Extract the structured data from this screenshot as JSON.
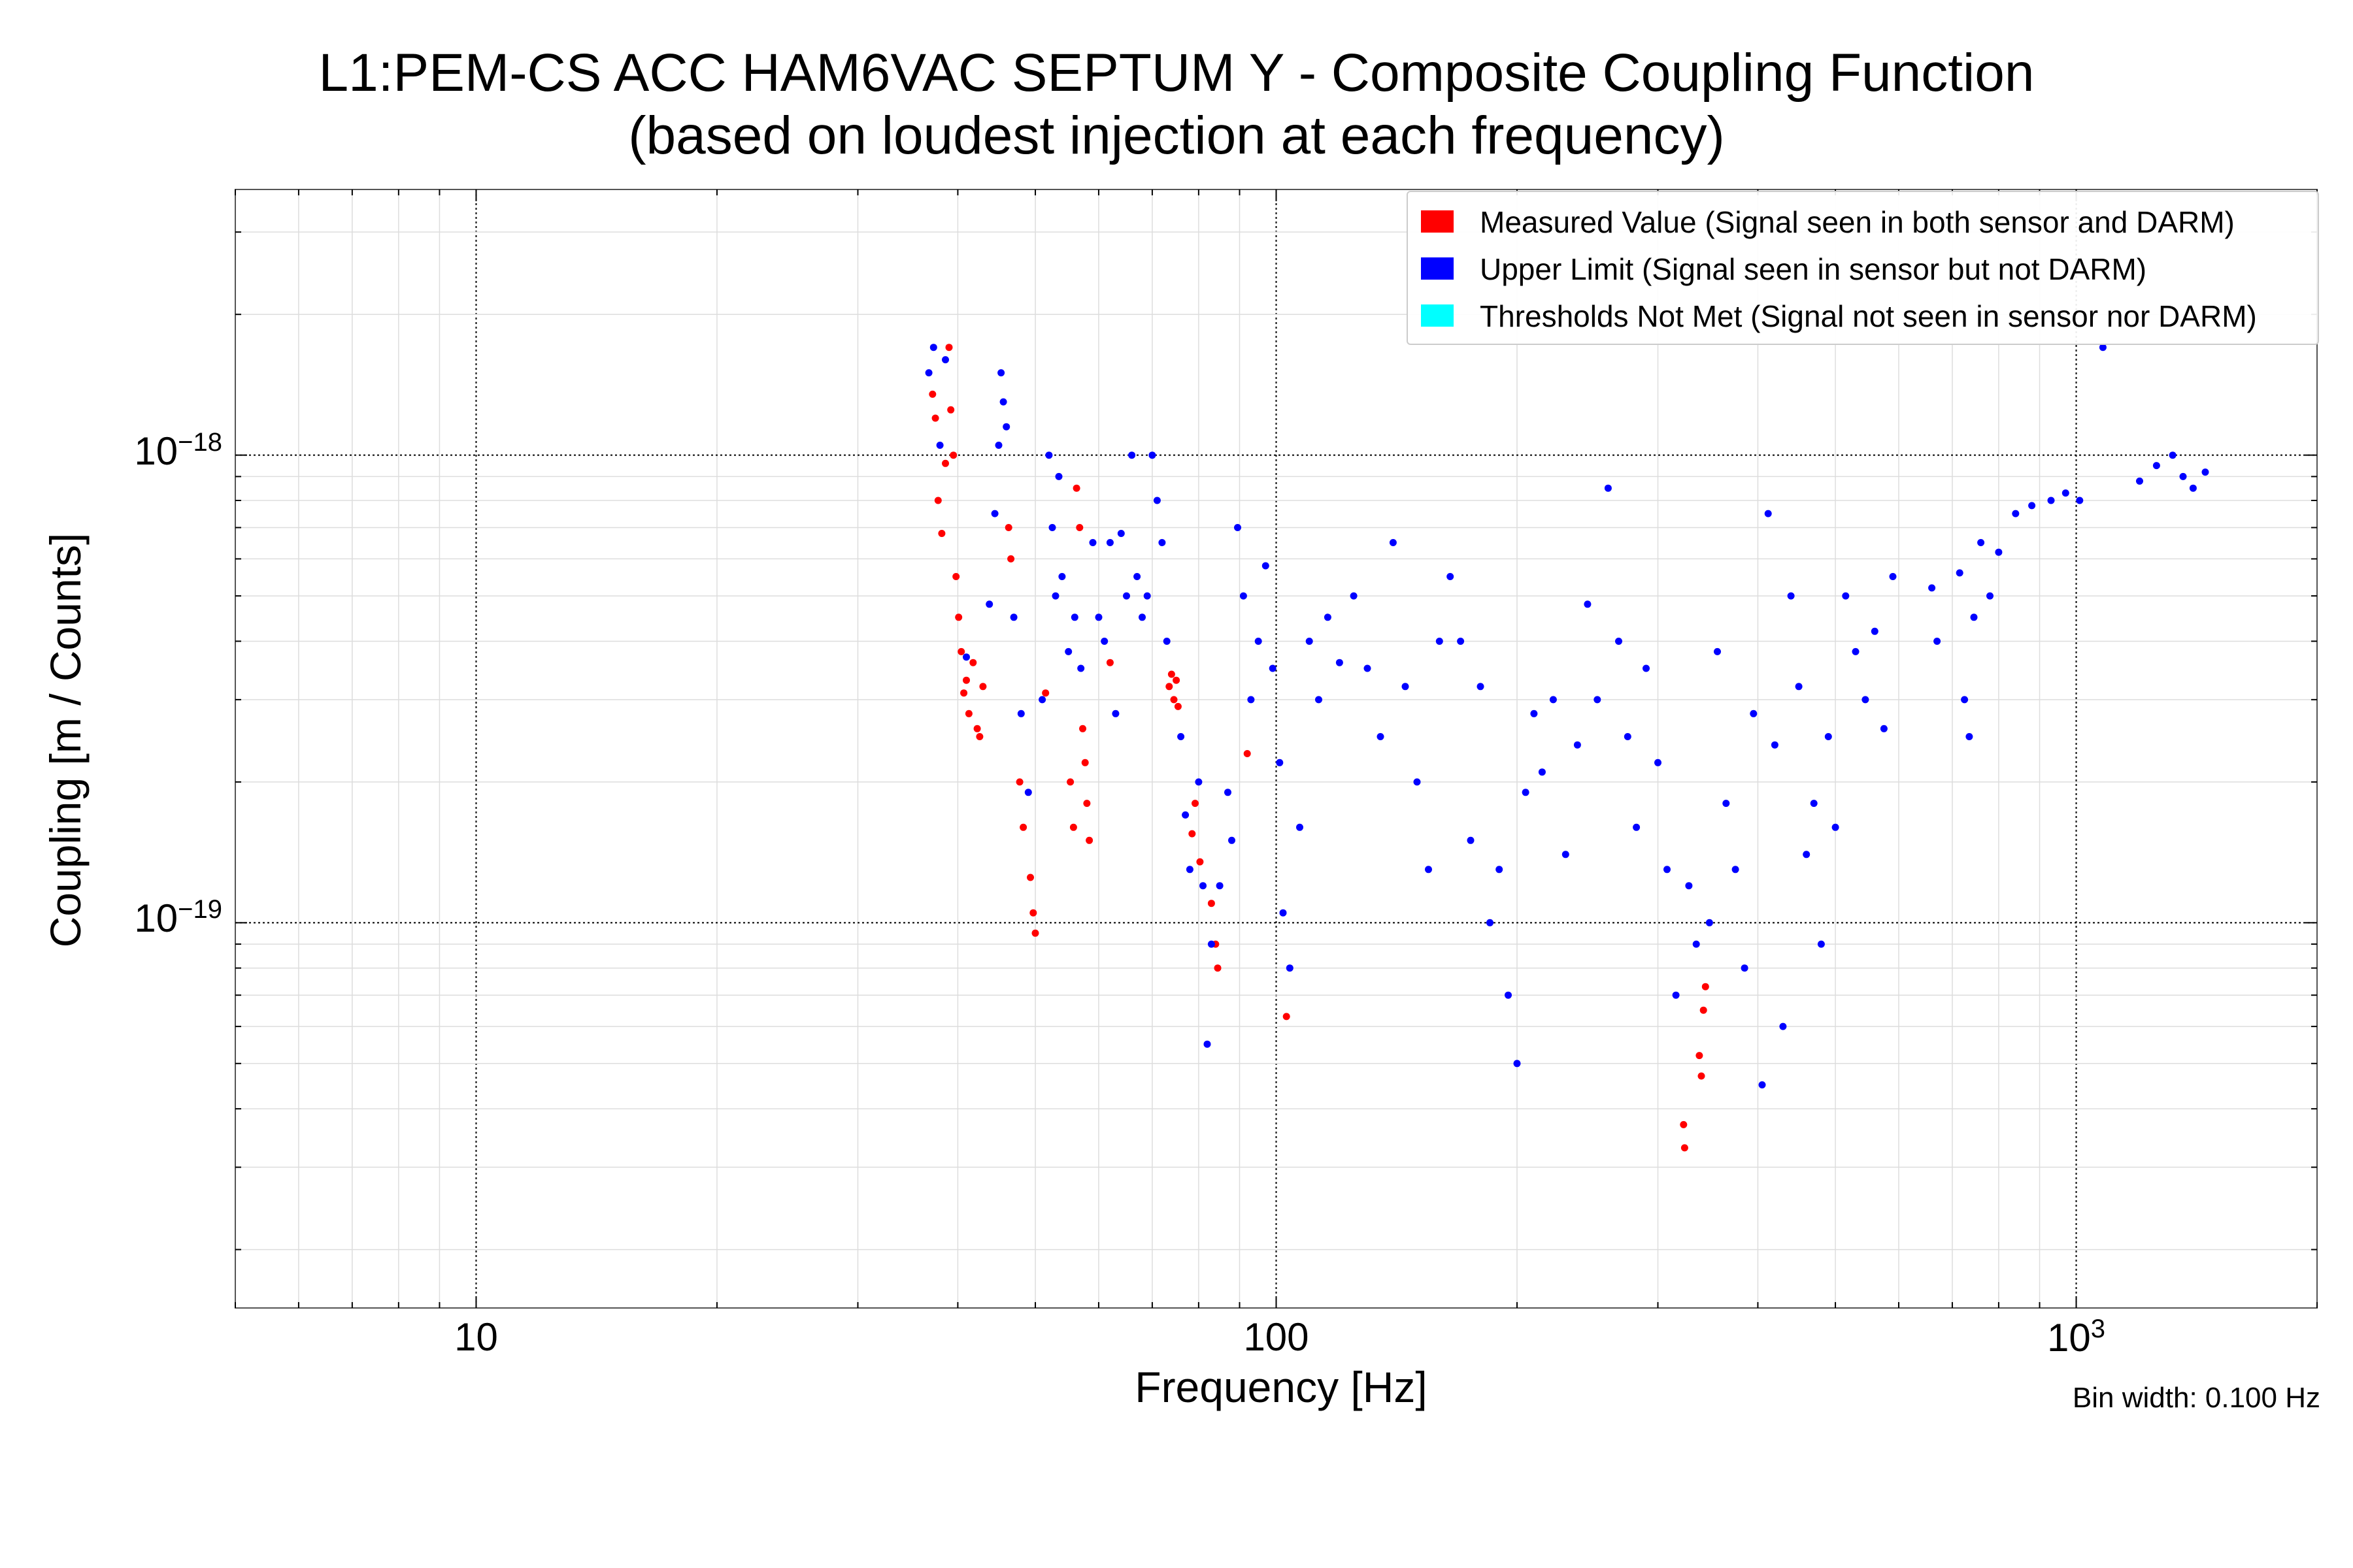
{
  "title_line1": "L1:PEM-CS ACC HAM6VAC SEPTUM Y - Composite Coupling Function",
  "title_line2": "(based on loudest injection at each frequency)",
  "bin_width_note": "Bin width: 0.100 Hz",
  "chart_data": {
    "type": "scatter",
    "xlabel": "Frequency [Hz]",
    "ylabel": "Coupling [m / Counts]",
    "xscale": "log",
    "yscale": "log",
    "xlim": [
      5,
      2000
    ],
    "ylim": [
      1.5e-20,
      3.7e-18
    ],
    "x_tick_labels": [
      {
        "value": 10,
        "label": "10"
      },
      {
        "value": 100,
        "label": "100"
      },
      {
        "value": 1000,
        "label": "10",
        "sup": "3"
      }
    ],
    "y_tick_labels": [
      {
        "value": 1e-19,
        "base": "10",
        "exp": "−19"
      },
      {
        "value": 1e-18,
        "base": "10",
        "exp": "−18"
      }
    ],
    "grid": true,
    "legend_position": "top-right",
    "series": [
      {
        "name": "Measured Value (Signal seen in both sensor and DARM)",
        "color": "#ff0000",
        "points": [
          [
            37.2,
            1.35e-18
          ],
          [
            37.5,
            1.2e-18
          ],
          [
            37.8,
            8e-19
          ],
          [
            38.2,
            6.8e-19
          ],
          [
            38.6,
            9.6e-19
          ],
          [
            39.0,
            1.7e-18
          ],
          [
            39.2,
            1.25e-18
          ],
          [
            39.5,
            1e-18
          ],
          [
            39.8,
            5.5e-19
          ],
          [
            40.1,
            4.5e-19
          ],
          [
            40.4,
            3.8e-19
          ],
          [
            40.7,
            3.1e-19
          ],
          [
            41.0,
            3.3e-19
          ],
          [
            41.3,
            2.8e-19
          ],
          [
            41.8,
            3.6e-19
          ],
          [
            42.3,
            2.6e-19
          ],
          [
            42.6,
            2.5e-19
          ],
          [
            43.0,
            3.2e-19
          ],
          [
            46.3,
            7e-19
          ],
          [
            46.6,
            6e-19
          ],
          [
            47.8,
            2e-19
          ],
          [
            48.3,
            1.6e-19
          ],
          [
            49.3,
            1.25e-19
          ],
          [
            49.7,
            1.05e-19
          ],
          [
            50.0,
            9.5e-20
          ],
          [
            51.5,
            3.1e-19
          ],
          [
            55.3,
            2e-19
          ],
          [
            55.8,
            1.6e-19
          ],
          [
            56.3,
            8.5e-19
          ],
          [
            56.8,
            7e-19
          ],
          [
            57.3,
            2.6e-19
          ],
          [
            57.7,
            2.2e-19
          ],
          [
            58.0,
            1.8e-19
          ],
          [
            58.4,
            1.5e-19
          ],
          [
            62.0,
            3.6e-19
          ],
          [
            73.5,
            3.2e-19
          ],
          [
            74.0,
            3.4e-19
          ],
          [
            74.5,
            3e-19
          ],
          [
            75.0,
            3.3e-19
          ],
          [
            75.4,
            2.9e-19
          ],
          [
            78.5,
            1.55e-19
          ],
          [
            79.2,
            1.8e-19
          ],
          [
            80.3,
            1.35e-19
          ],
          [
            83.0,
            1.1e-19
          ],
          [
            84.0,
            9e-20
          ],
          [
            84.5,
            8e-20
          ],
          [
            92.0,
            2.3e-19
          ],
          [
            103.0,
            6.3e-20
          ],
          [
            323.0,
            3.7e-20
          ],
          [
            324.0,
            3.3e-20
          ],
          [
            338.0,
            5.2e-20
          ],
          [
            340.0,
            4.7e-20
          ],
          [
            342.0,
            6.5e-20
          ],
          [
            344.0,
            7.3e-20
          ]
        ]
      },
      {
        "name": "Upper Limit (Signal seen in sensor but not DARM)",
        "color": "#0000ff",
        "points": [
          [
            36.8,
            1.5e-18
          ],
          [
            37.3,
            1.7e-18
          ],
          [
            38.0,
            1.05e-18
          ],
          [
            38.6,
            1.6e-18
          ],
          [
            41.0,
            3.7e-19
          ],
          [
            43.8,
            4.8e-19
          ],
          [
            44.5,
            7.5e-19
          ],
          [
            45.0,
            1.05e-18
          ],
          [
            45.3,
            1.5e-18
          ],
          [
            45.6,
            1.3e-18
          ],
          [
            46.0,
            1.15e-18
          ],
          [
            47.0,
            4.5e-19
          ],
          [
            48.0,
            2.8e-19
          ],
          [
            49.0,
            1.9e-19
          ],
          [
            51.0,
            3e-19
          ],
          [
            52.0,
            1e-18
          ],
          [
            52.5,
            7e-19
          ],
          [
            53.0,
            5e-19
          ],
          [
            53.5,
            9e-19
          ],
          [
            54.0,
            5.5e-19
          ],
          [
            55.0,
            3.8e-19
          ],
          [
            56.0,
            4.5e-19
          ],
          [
            57.0,
            3.5e-19
          ],
          [
            59.0,
            6.5e-19
          ],
          [
            60.0,
            4.5e-19
          ],
          [
            61.0,
            4e-19
          ],
          [
            62.0,
            6.5e-19
          ],
          [
            63.0,
            2.8e-19
          ],
          [
            64.0,
            6.8e-19
          ],
          [
            65.0,
            5e-19
          ],
          [
            66.0,
            1e-18
          ],
          [
            67.0,
            5.5e-19
          ],
          [
            68.0,
            4.5e-19
          ],
          [
            69.0,
            5e-19
          ],
          [
            70.0,
            1e-18
          ],
          [
            71.0,
            8e-19
          ],
          [
            72.0,
            6.5e-19
          ],
          [
            73.0,
            4e-19
          ],
          [
            76.0,
            2.5e-19
          ],
          [
            77.0,
            1.7e-19
          ],
          [
            78.0,
            1.3e-19
          ],
          [
            80.0,
            2e-19
          ],
          [
            81.0,
            1.2e-19
          ],
          [
            82.0,
            5.5e-20
          ],
          [
            83.0,
            9e-20
          ],
          [
            85.0,
            1.2e-19
          ],
          [
            87.0,
            1.9e-19
          ],
          [
            88.0,
            1.5e-19
          ],
          [
            89.5,
            7e-19
          ],
          [
            91.0,
            5e-19
          ],
          [
            93.0,
            3e-19
          ],
          [
            95.0,
            4e-19
          ],
          [
            97.0,
            5.8e-19
          ],
          [
            99.0,
            3.5e-19
          ],
          [
            101.0,
            2.2e-19
          ],
          [
            102.0,
            1.05e-19
          ],
          [
            104.0,
            8e-20
          ],
          [
            107.0,
            1.6e-19
          ],
          [
            110.0,
            4e-19
          ],
          [
            113.0,
            3e-19
          ],
          [
            116.0,
            4.5e-19
          ],
          [
            120.0,
            3.6e-19
          ],
          [
            125.0,
            5e-19
          ],
          [
            130.0,
            3.5e-19
          ],
          [
            135.0,
            2.5e-19
          ],
          [
            140.0,
            6.5e-19
          ],
          [
            145.0,
            3.2e-19
          ],
          [
            150.0,
            2e-19
          ],
          [
            155.0,
            1.3e-19
          ],
          [
            160.0,
            4e-19
          ],
          [
            165.0,
            5.5e-19
          ],
          [
            170.0,
            4e-19
          ],
          [
            175.0,
            1.5e-19
          ],
          [
            180.0,
            3.2e-19
          ],
          [
            185.0,
            1e-19
          ],
          [
            190.0,
            1.3e-19
          ],
          [
            195.0,
            7e-20
          ],
          [
            200.0,
            5e-20
          ],
          [
            205.0,
            1.9e-19
          ],
          [
            210.0,
            2.8e-19
          ],
          [
            215.0,
            2.1e-19
          ],
          [
            222.0,
            3e-19
          ],
          [
            230.0,
            1.4e-19
          ],
          [
            238.0,
            2.4e-19
          ],
          [
            245.0,
            4.8e-19
          ],
          [
            252.0,
            3e-19
          ],
          [
            260.0,
            8.5e-19
          ],
          [
            268.0,
            4e-19
          ],
          [
            275.0,
            2.5e-19
          ],
          [
            282.0,
            1.6e-19
          ],
          [
            290.0,
            3.5e-19
          ],
          [
            300.0,
            2.2e-19
          ],
          [
            308.0,
            1.3e-19
          ],
          [
            316.0,
            7e-20
          ],
          [
            328.0,
            1.2e-19
          ],
          [
            335.0,
            9e-20
          ],
          [
            348.0,
            1e-19
          ],
          [
            356.0,
            3.8e-19
          ],
          [
            365.0,
            1.8e-19
          ],
          [
            375.0,
            1.3e-19
          ],
          [
            385.0,
            8e-20
          ],
          [
            395.0,
            2.8e-19
          ],
          [
            405.0,
            4.5e-20
          ],
          [
            412.0,
            7.5e-19
          ],
          [
            420.0,
            2.4e-19
          ],
          [
            430.0,
            6e-20
          ],
          [
            440.0,
            5e-19
          ],
          [
            450.0,
            3.2e-19
          ],
          [
            460.0,
            1.4e-19
          ],
          [
            470.0,
            1.8e-19
          ],
          [
            480.0,
            9e-20
          ],
          [
            490.0,
            2.5e-19
          ],
          [
            500.0,
            1.6e-19
          ],
          [
            515.0,
            5e-19
          ],
          [
            530.0,
            3.8e-19
          ],
          [
            545.0,
            3e-19
          ],
          [
            560.0,
            4.2e-19
          ],
          [
            575.0,
            2.6e-19
          ],
          [
            590.0,
            5.5e-19
          ],
          [
            660.0,
            5.2e-19
          ],
          [
            670.0,
            4e-19
          ],
          [
            715.0,
            5.6e-19
          ],
          [
            725.0,
            3e-19
          ],
          [
            735.0,
            2.5e-19
          ],
          [
            745.0,
            4.5e-19
          ],
          [
            760.0,
            6.5e-19
          ],
          [
            780.0,
            5e-19
          ],
          [
            800.0,
            6.2e-19
          ],
          [
            840.0,
            7.5e-19
          ],
          [
            880.0,
            7.8e-19
          ],
          [
            930.0,
            8e-19
          ],
          [
            970.0,
            8.3e-19
          ],
          [
            1010.0,
            8e-19
          ],
          [
            1080.0,
            1.7e-18
          ],
          [
            1200.0,
            8.8e-19
          ],
          [
            1260.0,
            9.5e-19
          ],
          [
            1320.0,
            1e-18
          ],
          [
            1360.0,
            9e-19
          ],
          [
            1400.0,
            8.5e-19
          ],
          [
            1450.0,
            9.2e-19
          ]
        ]
      },
      {
        "name": "Thresholds Not Met (Signal not seen in sensor nor DARM)",
        "color": "#00ffff",
        "points": []
      }
    ]
  }
}
